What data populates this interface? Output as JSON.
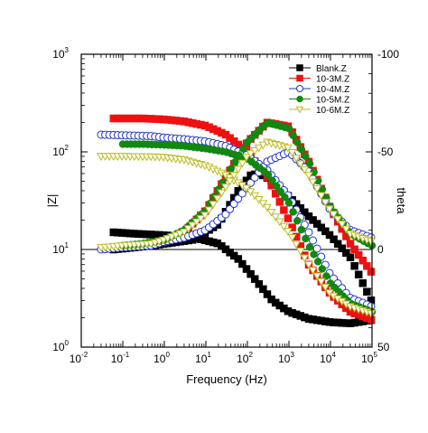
{
  "chart_data": {
    "type": "scatter",
    "xlabel": "Frequency (Hz)",
    "ylabel_left": "|Z|",
    "ylabel_right": "theta",
    "x_scale": "log",
    "y_left_scale": "log",
    "xlim": [
      0.01,
      100000
    ],
    "ylim_left": [
      1,
      1000
    ],
    "ylim_right": [
      50,
      -100
    ],
    "x_ticks": [
      {
        "base": "10",
        "exp": "-2",
        "value": 0.01
      },
      {
        "base": "10",
        "exp": "-1",
        "value": 0.1
      },
      {
        "base": "10",
        "exp": "0",
        "value": 1
      },
      {
        "base": "10",
        "exp": "1",
        "value": 10
      },
      {
        "base": "10",
        "exp": "2",
        "value": 100
      },
      {
        "base": "10",
        "exp": "3",
        "value": 1000
      },
      {
        "base": "10",
        "exp": "4",
        "value": 10000
      },
      {
        "base": "10",
        "exp": "5",
        "value": 100000
      }
    ],
    "y_left_ticks": [
      {
        "base": "10",
        "exp": "0",
        "value": 1
      },
      {
        "base": "10",
        "exp": "1",
        "value": 10
      },
      {
        "base": "10",
        "exp": "2",
        "value": 100
      },
      {
        "base": "10",
        "exp": "3",
        "value": 1000
      }
    ],
    "y_right_ticks": [
      {
        "label": "-100",
        "value": -100
      },
      {
        "label": "-50",
        "value": -50
      },
      {
        "label": "0",
        "value": 0
      },
      {
        "label": "50",
        "value": 50
      }
    ],
    "reference_line_theta": 0,
    "grid": false,
    "legend_position": "top-right",
    "series": [
      {
        "name": "Blank.Z",
        "color": "#000000",
        "marker": "square-filled",
        "z": {
          "x": [
            0.06,
            0.2,
            1,
            5,
            20,
            60,
            150,
            400,
            1000,
            3000,
            10000,
            30000,
            100000
          ],
          "y": [
            15,
            14.5,
            14,
            13.3,
            11.5,
            8,
            5,
            3,
            2.3,
            1.95,
            1.8,
            1.75,
            1.9
          ]
        },
        "theta": {
          "x": [
            0.06,
            0.5,
            5,
            20,
            60,
            120,
            200,
            400,
            1000,
            3000,
            10000,
            30000,
            100000
          ],
          "y": [
            0,
            -2,
            -5,
            -13,
            -30,
            -38,
            -39,
            -35,
            -27,
            -17,
            -7,
            4,
            27
          ]
        }
      },
      {
        "name": "10-3M.Z",
        "color": "#ee1111",
        "marker": "square-filled",
        "z": {
          "x": [
            0.06,
            0.3,
            1,
            3,
            10,
            30,
            100,
            300,
            1000,
            3000,
            10000,
            30000,
            100000
          ],
          "y": [
            220,
            220,
            215,
            205,
            185,
            150,
            100,
            55,
            20,
            7,
            3.5,
            2.3,
            1.9
          ]
        },
        "theta": {
          "x": [
            0.06,
            0.3,
            1,
            3,
            10,
            30,
            100,
            300,
            1000,
            3000,
            10000,
            30000,
            100000
          ],
          "y": [
            -1,
            -2,
            -4,
            -9,
            -20,
            -37,
            -55,
            -65,
            -63,
            -45,
            -21,
            -3,
            12
          ]
        }
      },
      {
        "name": "10-4M.Z",
        "color": "#2233cc",
        "marker": "circle-open",
        "z": {
          "x": [
            0.03,
            0.1,
            0.5,
            1,
            3,
            10,
            30,
            100,
            300,
            1000,
            3000,
            10000,
            30000,
            100000
          ],
          "y": [
            150,
            148,
            145,
            140,
            135,
            128,
            115,
            92,
            65,
            35,
            15,
            5.5,
            3.2,
            2.6
          ]
        },
        "theta": {
          "x": [
            0.03,
            0.1,
            0.5,
            1,
            3,
            10,
            30,
            100,
            300,
            1000,
            3000,
            10000,
            30000,
            100000
          ],
          "y": [
            0,
            -1,
            -2,
            -4,
            -6,
            -10,
            -18,
            -32,
            -45,
            -50,
            -40,
            -20,
            -10,
            -6
          ]
        }
      },
      {
        "name": "10-5M.Z",
        "color": "#118811",
        "marker": "circle-filled",
        "z": {
          "x": [
            0.1,
            0.3,
            1,
            3,
            10,
            30,
            100,
            300,
            1000,
            3000,
            10000,
            30000,
            100000
          ],
          "y": [
            120,
            120,
            118,
            115,
            108,
            100,
            85,
            60,
            30,
            11,
            4.5,
            2.8,
            2.3
          ]
        },
        "theta": {
          "x": [
            0.1,
            0.3,
            1,
            3,
            10,
            30,
            100,
            300,
            1000,
            3000,
            10000,
            30000,
            100000
          ],
          "y": [
            -2,
            -3,
            -5,
            -10,
            -20,
            -37,
            -55,
            -65,
            -62,
            -45,
            -22,
            -8,
            -2
          ]
        }
      },
      {
        "name": "10-6M.Z",
        "color": "#bbbb22",
        "marker": "triangle-down-open",
        "z": {
          "x": [
            0.03,
            0.1,
            0.5,
            1,
            3,
            10,
            30,
            100,
            300,
            1000,
            3000,
            10000,
            30000,
            100000
          ],
          "y": [
            90,
            90,
            89,
            88,
            83,
            72,
            58,
            42,
            27,
            15,
            7,
            3.5,
            2.6,
            2.2
          ]
        },
        "theta": {
          "x": [
            0.03,
            0.1,
            0.5,
            1,
            3,
            10,
            30,
            100,
            300,
            1000,
            3000,
            10000,
            30000,
            100000
          ],
          "y": [
            -1,
            -2,
            -3,
            -5,
            -9,
            -18,
            -32,
            -48,
            -55,
            -52,
            -38,
            -20,
            -8,
            -4
          ]
        }
      }
    ]
  }
}
